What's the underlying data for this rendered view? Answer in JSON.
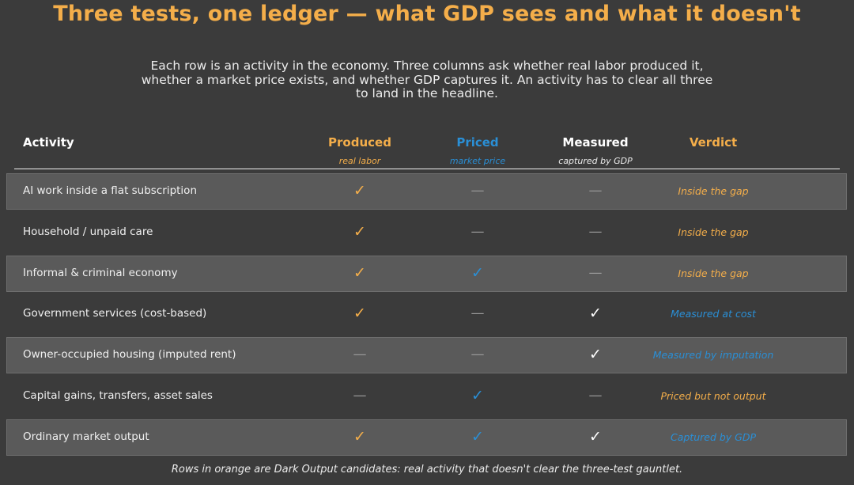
{
  "title": "Three tests, one ledger — what GDP sees and what it doesn't",
  "subtitle": "Each row is an activity in the economy. Three columns ask whether real labor produced it, whether a market price exists, and whether GDP captures it. An activity has to clear all three to land in the headline.",
  "columns": {
    "activity": "Activity",
    "produced": {
      "label": "Produced",
      "sub": "real labor"
    },
    "priced": {
      "label": "Priced",
      "sub": "market price"
    },
    "measured": {
      "label": "Measured",
      "sub": "captured by GDP"
    },
    "verdict": "Verdict"
  },
  "rows": [
    {
      "activity": "AI work inside a flat subscription",
      "produced": "✓",
      "priced": "—",
      "measured": "—",
      "verdict": "Inside the gap"
    },
    {
      "activity": "Household / unpaid care",
      "produced": "✓",
      "priced": "—",
      "measured": "—",
      "verdict": "Inside the gap"
    },
    {
      "activity": "Informal & criminal economy",
      "produced": "✓",
      "priced": "✓",
      "measured": "—",
      "verdict": "Inside the gap"
    },
    {
      "activity": "Government services (cost-based)",
      "produced": "✓",
      "priced": "—",
      "measured": "✓",
      "verdict": "Measured at cost"
    },
    {
      "activity": "Owner-occupied housing (imputed rent)",
      "produced": "—",
      "priced": "—",
      "measured": "✓",
      "verdict": "Measured by imputation"
    },
    {
      "activity": "Capital gains, transfers, asset sales",
      "produced": "—",
      "priced": "✓",
      "measured": "—",
      "verdict": "Priced but not output"
    },
    {
      "activity": "Ordinary market output",
      "produced": "✓",
      "priced": "✓",
      "measured": "✓",
      "verdict": "Captured by GDP"
    }
  ],
  "footnote": "Rows in orange are Dark Output candidates: real activity that doesn't clear the three-test gauntlet.",
  "colors": {
    "background": "#3b3b3b",
    "accent_orange": "#f4ae4a",
    "accent_blue": "#2a8fd6",
    "row_shade": "#5a5a5a"
  }
}
